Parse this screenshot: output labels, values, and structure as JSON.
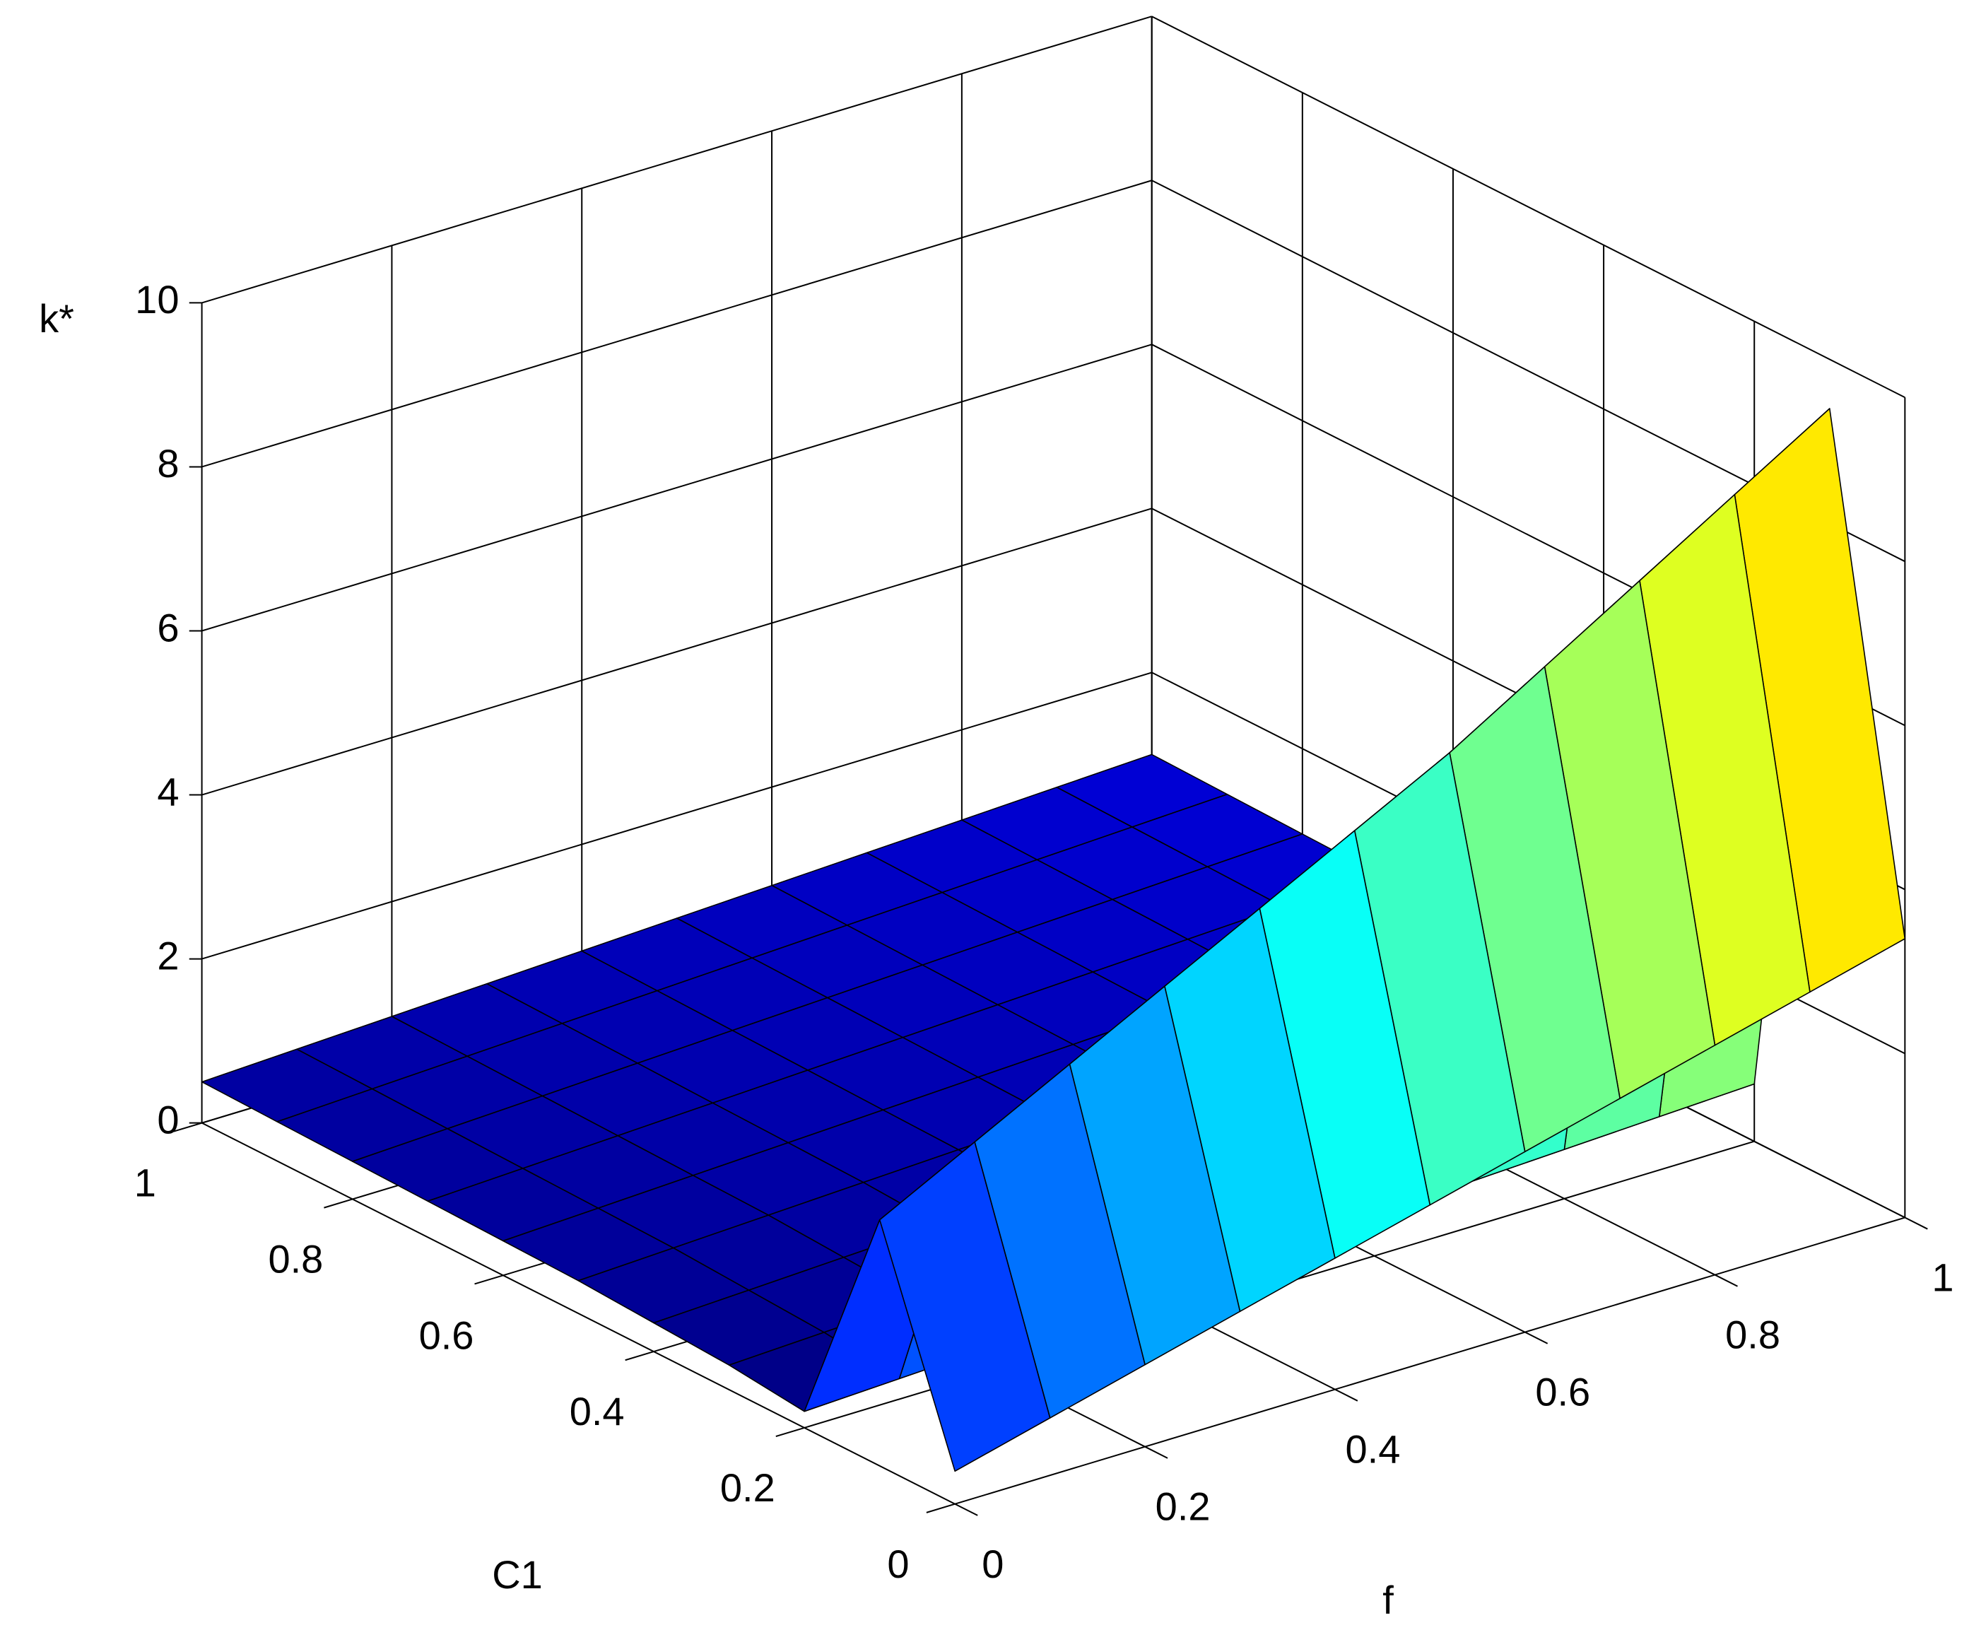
{
  "chart_data": {
    "type": "surface",
    "colormap": "jet",
    "xlabel": "f",
    "ylabel": "C1",
    "zlabel": "k*",
    "x": [
      0,
      0.1,
      0.2,
      0.3,
      0.4,
      0.5,
      0.6,
      0.7,
      0.8,
      0.9,
      1
    ],
    "y": [
      0,
      0.1,
      0.2,
      0.3,
      0.4,
      0.5,
      0.6,
      0.7,
      0.8,
      0.9,
      1
    ],
    "z": [
      [
        0.4,
        0.7,
        1.0,
        1.3,
        1.6,
        1.9,
        2.2,
        2.5,
        2.8,
        3.1,
        3.4
      ],
      [
        3.0,
        3.6,
        4.2,
        4.8,
        5.4,
        6.0,
        6.6,
        7.3,
        8.0,
        8.7,
        9.4
      ],
      [
        0.2,
        0.25,
        0.3,
        0.35,
        0.4,
        0.45,
        0.5,
        0.55,
        0.6,
        0.65,
        0.7
      ],
      [
        0.3,
        0.35,
        0.4,
        0.45,
        0.5,
        0.55,
        0.6,
        0.65,
        0.7,
        0.75,
        0.8
      ],
      [
        0.35,
        0.4,
        0.45,
        0.5,
        0.55,
        0.6,
        0.65,
        0.7,
        0.75,
        0.8,
        0.85
      ],
      [
        0.4,
        0.45,
        0.5,
        0.55,
        0.6,
        0.65,
        0.7,
        0.75,
        0.8,
        0.85,
        0.9
      ],
      [
        0.42,
        0.47,
        0.52,
        0.57,
        0.62,
        0.67,
        0.72,
        0.77,
        0.82,
        0.87,
        0.92
      ],
      [
        0.44,
        0.49,
        0.54,
        0.59,
        0.64,
        0.69,
        0.74,
        0.79,
        0.84,
        0.89,
        0.94
      ],
      [
        0.46,
        0.51,
        0.56,
        0.61,
        0.66,
        0.71,
        0.76,
        0.81,
        0.86,
        0.91,
        0.96
      ],
      [
        0.48,
        0.53,
        0.58,
        0.63,
        0.68,
        0.73,
        0.78,
        0.83,
        0.88,
        0.93,
        0.98
      ],
      [
        0.5,
        0.55,
        0.6,
        0.65,
        0.7,
        0.75,
        0.8,
        0.85,
        0.9,
        0.95,
        1.0
      ]
    ],
    "xlim": [
      0,
      1
    ],
    "xticks": [
      0,
      0.2,
      0.4,
      0.6,
      0.8,
      1
    ],
    "ylim": [
      0,
      1
    ],
    "yticks": [
      0,
      0.2,
      0.4,
      0.6,
      0.8,
      1
    ],
    "zlim": [
      0,
      10
    ],
    "zticks": [
      0,
      2,
      4,
      6,
      8,
      10
    ],
    "grid": true
  }
}
